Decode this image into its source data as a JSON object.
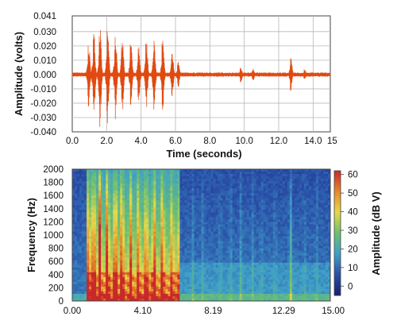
{
  "chart_data": [
    {
      "type": "line",
      "xlabel": "Time  (seconds)",
      "ylabel": "Amplitude (volts)",
      "xlim": [
        0,
        15
      ],
      "ylim": [
        -0.04,
        0.041
      ],
      "x_ticks": [
        "0.0",
        "2.0",
        "4.0",
        "6.0",
        "8.0",
        "10.0",
        "12.0",
        "14.0",
        "15"
      ],
      "y_ticks": [
        "0.041",
        "0.030",
        "0.020",
        "0.010",
        "0.000",
        "-0.010",
        "-0.020",
        "-0.030",
        "-0.040"
      ],
      "grid": true,
      "line_color": "#e04a10",
      "series": [
        {
          "bursts": [
            {
              "t": 0.95,
              "amp": 0.024
            },
            {
              "t": 1.25,
              "amp": 0.032
            },
            {
              "t": 1.6,
              "amp": 0.038
            },
            {
              "t": 2.05,
              "amp": 0.035
            },
            {
              "t": 2.5,
              "amp": 0.032
            },
            {
              "t": 2.9,
              "amp": 0.03
            },
            {
              "t": 3.4,
              "amp": 0.024
            },
            {
              "t": 3.85,
              "amp": 0.021
            },
            {
              "t": 4.3,
              "amp": 0.025
            },
            {
              "t": 4.75,
              "amp": 0.028
            },
            {
              "t": 5.25,
              "amp": 0.026
            },
            {
              "t": 5.8,
              "amp": 0.018
            },
            {
              "t": 6.15,
              "amp": 0.01
            },
            {
              "t": 9.8,
              "amp": 0.006
            },
            {
              "t": 10.5,
              "amp": 0.005
            },
            {
              "t": 12.7,
              "amp": 0.012
            },
            {
              "t": 13.5,
              "amp": 0.004
            }
          ],
          "noise_amp": 0.0015
        }
      ]
    },
    {
      "type": "heatmap",
      "xlabel": "",
      "ylabel": "Frequency (Hz)",
      "xlim": [
        0,
        15
      ],
      "ylim": [
        0,
        2000
      ],
      "x_ticks": [
        "0.00",
        "4.10",
        "8.19",
        "12.29",
        "15.00"
      ],
      "y_ticks": [
        "2000",
        "1800",
        "1600",
        "1400",
        "1200",
        "1000",
        "800",
        "600",
        "400",
        "200",
        "0"
      ],
      "colorbar": {
        "label": "Amplitude (dB V)",
        "ticks": [
          "60",
          "50",
          "40",
          "30",
          "20",
          "10",
          "0"
        ],
        "range": [
          -5,
          62
        ]
      },
      "colors": [
        "#1a1e6e",
        "#2a4fa8",
        "#3fa0c8",
        "#6cc070",
        "#e8d84a",
        "#e8882a",
        "#c8282a"
      ]
    }
  ]
}
